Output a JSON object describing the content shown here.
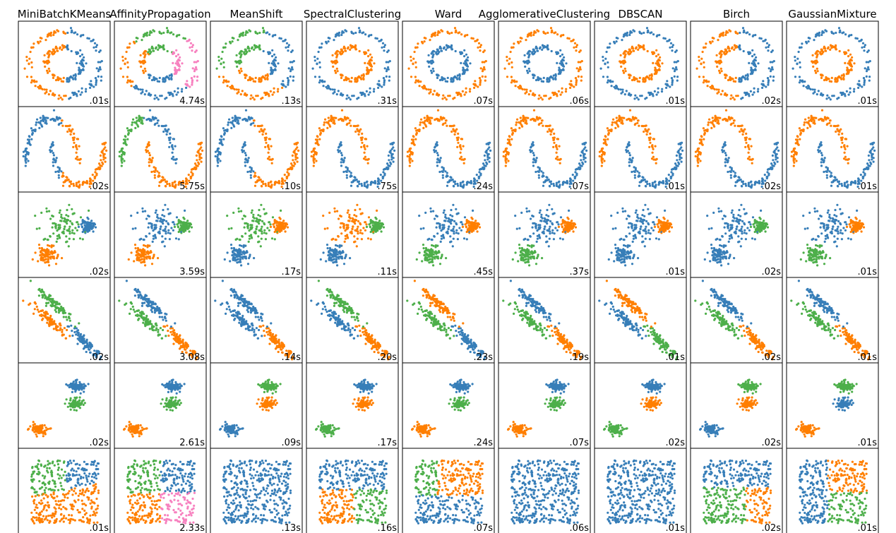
{
  "title": "",
  "colors": {
    "blue": "#377eb8",
    "orange": "#ff7f00",
    "green": "#4daf4a",
    "pink": "#f781bf",
    "black": "#000000"
  },
  "algorithms": [
    "MiniBatchKMeans",
    "AffinityPropagation",
    "MeanShift",
    "SpectralClustering",
    "Ward",
    "AgglomerativeClustering",
    "DBSCAN",
    "Birch",
    "GaussianMixture"
  ],
  "datasets": [
    "noisy_circles",
    "noisy_moons",
    "varied",
    "aniso",
    "blobs",
    "no_structure"
  ],
  "chart_data": {
    "type": "scatter",
    "grid": false,
    "rows": [
      {
        "dataset": "noisy_circles",
        "panels": [
          {
            "algorithm": "MiniBatchKMeans",
            "time": ".01s",
            "labels": [
              "blue",
              "orange"
            ]
          },
          {
            "algorithm": "AffinityPropagation",
            "time": "4.74s",
            "labels": [
              "pink",
              "green",
              "orange",
              "blue"
            ]
          },
          {
            "algorithm": "MeanShift",
            "time": ".13s",
            "labels": [
              "blue",
              "green",
              "orange"
            ]
          },
          {
            "algorithm": "SpectralClustering",
            "time": ".31s",
            "labels": [
              "blue",
              "orange"
            ]
          },
          {
            "algorithm": "Ward",
            "time": ".07s",
            "labels": [
              "orange",
              "blue"
            ]
          },
          {
            "algorithm": "AgglomerativeClustering",
            "time": ".06s",
            "labels": [
              "orange",
              "blue"
            ]
          },
          {
            "algorithm": "DBSCAN",
            "time": ".01s",
            "labels": [
              "blue",
              "orange"
            ]
          },
          {
            "algorithm": "Birch",
            "time": ".02s",
            "labels": [
              "blue",
              "orange"
            ]
          },
          {
            "algorithm": "GaussianMixture",
            "time": ".01s",
            "labels": [
              "blue",
              "orange"
            ]
          }
        ]
      },
      {
        "dataset": "noisy_moons",
        "panels": [
          {
            "algorithm": "MiniBatchKMeans",
            "time": ".02s",
            "labels": [
              "blue",
              "orange"
            ]
          },
          {
            "algorithm": "AffinityPropagation",
            "time": "5.75s",
            "labels": [
              "green",
              "blue",
              "orange"
            ]
          },
          {
            "algorithm": "MeanShift",
            "time": ".10s",
            "labels": [
              "blue",
              "orange"
            ]
          },
          {
            "algorithm": "SpectralClustering",
            "time": ".75s",
            "labels": [
              "orange",
              "blue"
            ]
          },
          {
            "algorithm": "Ward",
            "time": ".24s",
            "labels": [
              "orange",
              "blue"
            ]
          },
          {
            "algorithm": "AgglomerativeClustering",
            "time": ".07s",
            "labels": [
              "orange",
              "blue"
            ]
          },
          {
            "algorithm": "DBSCAN",
            "time": ".01s",
            "labels": [
              "orange",
              "blue"
            ]
          },
          {
            "algorithm": "Birch",
            "time": ".02s",
            "labels": [
              "orange",
              "blue"
            ]
          },
          {
            "algorithm": "GaussianMixture",
            "time": ".01s",
            "labels": [
              "orange",
              "blue"
            ]
          }
        ]
      },
      {
        "dataset": "varied",
        "panels": [
          {
            "algorithm": "MiniBatchKMeans",
            "time": ".02s",
            "labels": [
              "green",
              "orange",
              "blue"
            ]
          },
          {
            "algorithm": "AffinityPropagation",
            "time": "3.59s",
            "labels": [
              "blue",
              "orange",
              "green"
            ]
          },
          {
            "algorithm": "MeanShift",
            "time": ".17s",
            "labels": [
              "green",
              "blue",
              "orange"
            ]
          },
          {
            "algorithm": "SpectralClustering",
            "time": ".11s",
            "labels": [
              "orange",
              "blue",
              "green"
            ]
          },
          {
            "algorithm": "Ward",
            "time": ".45s",
            "labels": [
              "blue",
              "green",
              "orange"
            ]
          },
          {
            "algorithm": "AgglomerativeClustering",
            "time": ".37s",
            "labels": [
              "blue",
              "green",
              "orange"
            ]
          },
          {
            "algorithm": "DBSCAN",
            "time": ".01s",
            "labels": [
              "blue",
              "blue",
              "orange",
              "black"
            ]
          },
          {
            "algorithm": "Birch",
            "time": ".02s",
            "labels": [
              "blue",
              "blue",
              "green",
              "orange"
            ]
          },
          {
            "algorithm": "GaussianMixture",
            "time": ".01s",
            "labels": [
              "blue",
              "green",
              "orange"
            ]
          }
        ]
      },
      {
        "dataset": "aniso",
        "panels": [
          {
            "algorithm": "MiniBatchKMeans",
            "time": ".02s",
            "labels": [
              "green",
              "orange",
              "blue"
            ]
          },
          {
            "algorithm": "AffinityPropagation",
            "time": "3.08s",
            "labels": [
              "blue",
              "green",
              "orange"
            ]
          },
          {
            "algorithm": "MeanShift",
            "time": ".14s",
            "labels": [
              "blue",
              "blue",
              "orange"
            ]
          },
          {
            "algorithm": "SpectralClustering",
            "time": ".20s",
            "labels": [
              "green",
              "blue",
              "orange"
            ]
          },
          {
            "algorithm": "Ward",
            "time": ".23s",
            "labels": [
              "orange",
              "green",
              "blue"
            ]
          },
          {
            "algorithm": "AgglomerativeClustering",
            "time": ".19s",
            "labels": [
              "blue",
              "green",
              "orange"
            ]
          },
          {
            "algorithm": "DBSCAN",
            "time": ".01s",
            "labels": [
              "orange",
              "blue",
              "green",
              "black"
            ]
          },
          {
            "algorithm": "Birch",
            "time": ".02s",
            "labels": [
              "blue",
              "green",
              "orange"
            ]
          },
          {
            "algorithm": "GaussianMixture",
            "time": ".01s",
            "labels": [
              "blue",
              "green",
              "orange"
            ]
          }
        ]
      },
      {
        "dataset": "blobs",
        "panels": [
          {
            "algorithm": "MiniBatchKMeans",
            "time": ".02s",
            "labels": [
              "blue",
              "green",
              "orange"
            ]
          },
          {
            "algorithm": "AffinityPropagation",
            "time": "2.61s",
            "labels": [
              "blue",
              "green",
              "orange"
            ]
          },
          {
            "algorithm": "MeanShift",
            "time": ".09s",
            "labels": [
              "green",
              "orange",
              "blue"
            ]
          },
          {
            "algorithm": "SpectralClustering",
            "time": ".17s",
            "labels": [
              "blue",
              "orange",
              "green"
            ]
          },
          {
            "algorithm": "Ward",
            "time": ".24s",
            "labels": [
              "blue",
              "green",
              "orange"
            ]
          },
          {
            "algorithm": "AgglomerativeClustering",
            "time": ".07s",
            "labels": [
              "blue",
              "green",
              "orange"
            ]
          },
          {
            "algorithm": "DBSCAN",
            "time": ".02s",
            "labels": [
              "blue",
              "orange",
              "green"
            ]
          },
          {
            "algorithm": "Birch",
            "time": ".02s",
            "labels": [
              "green",
              "orange",
              "blue"
            ]
          },
          {
            "algorithm": "GaussianMixture",
            "time": ".01s",
            "labels": [
              "green",
              "blue",
              "orange"
            ]
          }
        ]
      },
      {
        "dataset": "no_structure",
        "panels": [
          {
            "algorithm": "MiniBatchKMeans",
            "time": ".01s",
            "partition": "kmeans3"
          },
          {
            "algorithm": "AffinityPropagation",
            "time": "2.33s",
            "partition": "quad4"
          },
          {
            "algorithm": "MeanShift",
            "time": ".13s",
            "partition": "single"
          },
          {
            "algorithm": "SpectralClustering",
            "time": ".16s",
            "partition": "spectral3"
          },
          {
            "algorithm": "Ward",
            "time": ".07s",
            "partition": "ward3"
          },
          {
            "algorithm": "AgglomerativeClustering",
            "time": ".06s",
            "partition": "single"
          },
          {
            "algorithm": "DBSCAN",
            "time": ".01s",
            "partition": "single"
          },
          {
            "algorithm": "Birch",
            "time": ".02s",
            "partition": "birch3"
          },
          {
            "algorithm": "GaussianMixture",
            "time": ".01s",
            "partition": "gmm3"
          }
        ]
      }
    ]
  }
}
